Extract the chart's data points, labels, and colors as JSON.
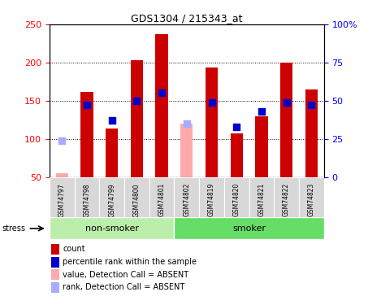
{
  "title": "GDS1304 / 215343_at",
  "samples": [
    "GSM74797",
    "GSM74798",
    "GSM74799",
    "GSM74800",
    "GSM74801",
    "GSM74802",
    "GSM74819",
    "GSM74820",
    "GSM74821",
    "GSM74822",
    "GSM74823"
  ],
  "counts": [
    55,
    162,
    113,
    203,
    237,
    120,
    193,
    107,
    130,
    200,
    165
  ],
  "ranks_pct": [
    24,
    47,
    37,
    50,
    55,
    35,
    49,
    33,
    43,
    49,
    47
  ],
  "absent_flags": [
    true,
    false,
    false,
    false,
    false,
    true,
    false,
    false,
    false,
    false,
    false
  ],
  "rank_absent_flags": [
    true,
    false,
    false,
    false,
    false,
    true,
    false,
    false,
    false,
    false,
    false
  ],
  "ylim_left": [
    50,
    250
  ],
  "ylim_right": [
    0,
    100
  ],
  "yticks_left": [
    50,
    100,
    150,
    200,
    250
  ],
  "yticks_right": [
    0,
    25,
    50,
    75,
    100
  ],
  "yticklabels_right": [
    "0",
    "25",
    "50",
    "75",
    "100%"
  ],
  "bar_color_present": "#cc0000",
  "bar_color_absent": "#ffaaaa",
  "dot_color_present": "#0000cc",
  "dot_color_absent": "#aaaaff",
  "group_labels": [
    "non-smoker",
    "smoker"
  ],
  "group_colors_left": "#bbeeaa",
  "group_colors_right": "#66dd66",
  "stress_label": "stress",
  "legend_items": [
    {
      "label": "count",
      "color": "#cc0000"
    },
    {
      "label": "percentile rank within the sample",
      "color": "#0000cc"
    },
    {
      "label": "value, Detection Call = ABSENT",
      "color": "#ffaaaa"
    },
    {
      "label": "rank, Detection Call = ABSENT",
      "color": "#aaaaff"
    }
  ],
  "fig_width": 4.69,
  "fig_height": 3.75,
  "dpi": 100
}
